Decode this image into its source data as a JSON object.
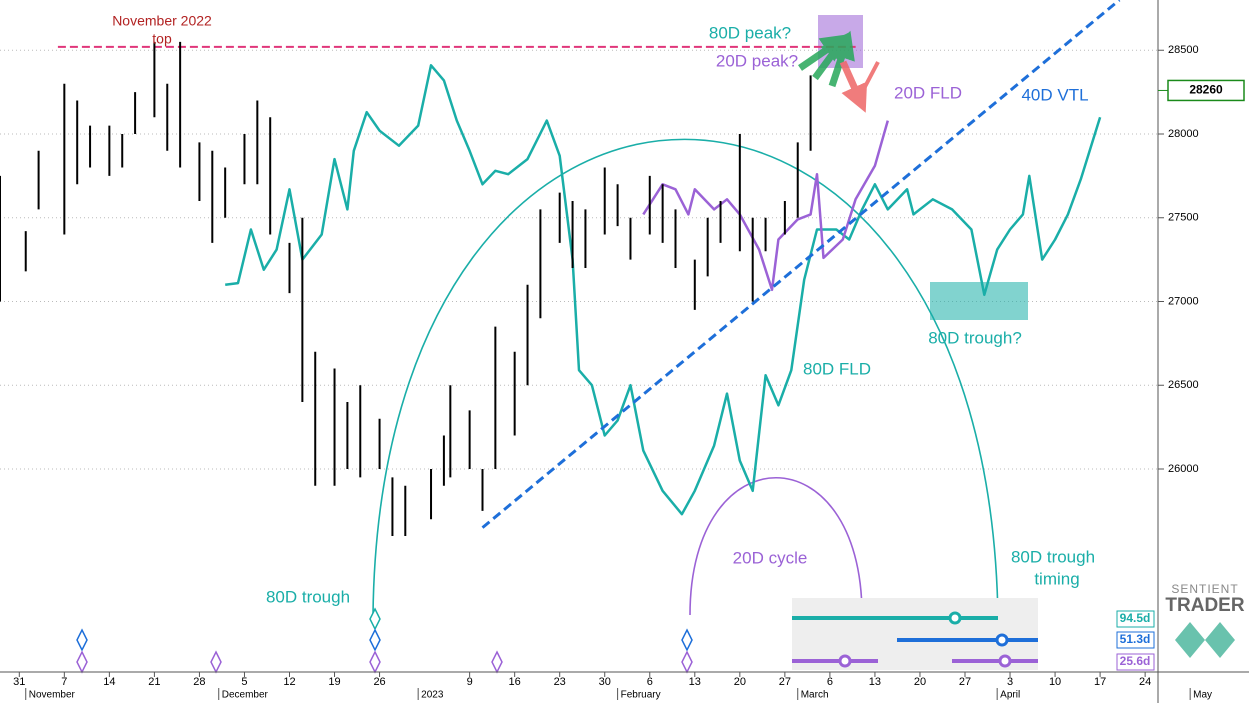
{
  "chart_data": {
    "type": "ohlc",
    "bars": {
      "x": [
        "2022-10-28",
        "2022-11-01",
        "2022-11-03",
        "2022-11-07",
        "2022-11-09",
        "2022-11-11",
        "2022-11-14",
        "2022-11-16",
        "2022-11-18",
        "2022-11-21",
        "2022-11-23",
        "2022-11-25",
        "2022-11-28",
        "2022-11-30",
        "2022-12-02",
        "2022-12-05",
        "2022-12-07",
        "2022-12-09",
        "2022-12-12",
        "2022-12-14",
        "2022-12-16",
        "2022-12-19",
        "2022-12-21",
        "2022-12-23",
        "2022-12-26",
        "2022-12-28",
        "2022-12-30",
        "2023-01-03",
        "2023-01-05",
        "2023-01-06",
        "2023-01-09",
        "2023-01-11",
        "2023-01-13",
        "2023-01-16",
        "2023-01-18",
        "2023-01-20",
        "2023-01-23",
        "2023-01-25",
        "2023-01-27",
        "2023-01-30",
        "2023-02-01",
        "2023-02-03",
        "2023-02-06",
        "2023-02-08",
        "2023-02-10",
        "2023-02-13",
        "2023-02-15",
        "2023-02-17",
        "2023-02-20",
        "2023-02-22",
        "2023-02-24",
        "2023-02-27",
        "2023-03-01",
        "2023-03-03"
      ],
      "high": [
        27750,
        27420,
        27900,
        28300,
        28200,
        28050,
        28050,
        28000,
        28250,
        28550,
        28300,
        28550,
        27950,
        27900,
        27800,
        28000,
        28200,
        28100,
        27350,
        27500,
        26700,
        26600,
        26400,
        26500,
        26300,
        25950,
        25900,
        26000,
        26200,
        26500,
        26350,
        26000,
        26850,
        26700,
        27100,
        27550,
        27650,
        27600,
        27550,
        27800,
        27700,
        27500,
        27750,
        27700,
        27550,
        27250,
        27500,
        27600,
        28000,
        27500,
        27500,
        27600,
        27950,
        28350
      ],
      "low": [
        27000,
        27180,
        27550,
        27400,
        27700,
        27800,
        27750,
        27800,
        28000,
        28100,
        27900,
        27800,
        27600,
        27350,
        27500,
        27700,
        27700,
        27400,
        27050,
        26400,
        25900,
        25900,
        26000,
        25950,
        26000,
        25600,
        25600,
        25700,
        25900,
        25950,
        26000,
        25750,
        26000,
        26200,
        26500,
        26900,
        27350,
        27200,
        27200,
        27400,
        27450,
        27250,
        27400,
        27350,
        27200,
        26950,
        27150,
        27350,
        27300,
        27000,
        27300,
        27400,
        27500,
        27900
      ],
      "color": "#000000"
    },
    "series": [
      {
        "name": "80D FLD",
        "color": "#1aaea8",
        "x": [
          "2022-12-02",
          "2022-12-04",
          "2022-12-06",
          "2022-12-08",
          "2022-12-10",
          "2022-12-12",
          "2022-12-14",
          "2022-12-17",
          "2022-12-19",
          "2022-12-21",
          "2022-12-22",
          "2022-12-24",
          "2022-12-26",
          "2022-12-29",
          "2023-01-01",
          "2023-01-03",
          "2023-01-05",
          "2023-01-07",
          "2023-01-09",
          "2023-01-11",
          "2023-01-13",
          "2023-01-15",
          "2023-01-18",
          "2023-01-21",
          "2023-01-23",
          "2023-01-25",
          "2023-01-26",
          "2023-01-28",
          "2023-01-30",
          "2023-02-01",
          "2023-02-03",
          "2023-02-05",
          "2023-02-08",
          "2023-02-11",
          "2023-02-13",
          "2023-02-16",
          "2023-02-18",
          "2023-02-20",
          "2023-02-22",
          "2023-02-24",
          "2023-02-26",
          "2023-02-28",
          "2023-03-02",
          "2023-03-04",
          "2023-03-07",
          "2023-03-09",
          "2023-03-11",
          "2023-03-13",
          "2023-03-15",
          "2023-03-18",
          "2023-03-19",
          "2023-03-22",
          "2023-03-25",
          "2023-03-28",
          "2023-03-30",
          "2023-04-01",
          "2023-04-03",
          "2023-04-05",
          "2023-04-06",
          "2023-04-08",
          "2023-04-10",
          "2023-04-12",
          "2023-04-14",
          "2023-04-17"
        ],
        "values": [
          27100,
          27110,
          27430,
          27190,
          27310,
          27670,
          27250,
          27400,
          27850,
          27550,
          27900,
          28130,
          28020,
          27930,
          28050,
          28410,
          28320,
          28080,
          27900,
          27700,
          27780,
          27760,
          27850,
          28080,
          27870,
          27250,
          26590,
          26500,
          26200,
          26290,
          26500,
          26110,
          25870,
          25730,
          25870,
          26140,
          26450,
          26050,
          25870,
          26560,
          26380,
          26590,
          27130,
          27430,
          27430,
          27370,
          27550,
          27700,
          27550,
          27670,
          27520,
          27610,
          27550,
          27430,
          27040,
          27310,
          27430,
          27520,
          27750,
          27250,
          27370,
          27520,
          27730,
          28100
        ]
      },
      {
        "name": "20D FLD",
        "color": "#9b62d6",
        "x": [
          "2023-02-05",
          "2023-02-08",
          "2023-02-10",
          "2023-02-12",
          "2023-02-13",
          "2023-02-16",
          "2023-02-18",
          "2023-02-20",
          "2023-02-23",
          "2023-02-25",
          "2023-02-26",
          "2023-03-01",
          "2023-03-03",
          "2023-03-04",
          "2023-03-05",
          "2023-03-08",
          "2023-03-10",
          "2023-03-13",
          "2023-03-15"
        ],
        "values": [
          27520,
          27700,
          27670,
          27520,
          27670,
          27550,
          27610,
          27520,
          27310,
          27070,
          27370,
          27490,
          27520,
          27760,
          27260,
          27370,
          27610,
          27810,
          28080
        ]
      },
      {
        "name": "40D VTL",
        "color": "#1e6fd9",
        "dashed": true,
        "x": [
          "2023-01-11",
          "2023-04-20"
        ],
        "values": [
          25650,
          28800
        ]
      }
    ],
    "reference_line": {
      "label": [
        "November 2022",
        "top"
      ],
      "color": "#e0367a",
      "x": [
        "2022-11-06",
        "2023-03-10"
      ],
      "value": 28520
    },
    "last_price": 28260,
    "annotations": {
      "peak80": "80D peak?",
      "peak20": "20D peak?",
      "trough80q": "80D trough?",
      "cycle20": "20D cycle",
      "trough80": "80D trough",
      "timing80": [
        "80D trough",
        "timing"
      ]
    },
    "cycle_lengths": [
      "94.5d",
      "51.3d",
      "25.6d"
    ],
    "logo": [
      "SENTIENT",
      "TRADER"
    ],
    "xlim": [
      "2022-10-28",
      "2023-04-26"
    ],
    "xticks": [
      {
        "value": "2022-10-31",
        "label": "31"
      },
      {
        "value": "2022-11-07",
        "label": "7"
      },
      {
        "value": "2022-11-14",
        "label": "14"
      },
      {
        "value": "2022-11-21",
        "label": "21"
      },
      {
        "value": "2022-11-28",
        "label": "28"
      },
      {
        "value": "2022-12-05",
        "label": "5"
      },
      {
        "value": "2022-12-12",
        "label": "12"
      },
      {
        "value": "2022-12-19",
        "label": "19"
      },
      {
        "value": "2022-12-26",
        "label": "26"
      },
      {
        "value": "2023-01-09",
        "label": "9"
      },
      {
        "value": "2023-01-16",
        "label": "16"
      },
      {
        "value": "2023-01-23",
        "label": "23"
      },
      {
        "value": "2023-01-30",
        "label": "30"
      },
      {
        "value": "2023-02-06",
        "label": "6"
      },
      {
        "value": "2023-02-13",
        "label": "13"
      },
      {
        "value": "2023-02-20",
        "label": "20"
      },
      {
        "value": "2023-02-27",
        "label": "27"
      },
      {
        "value": "2023-03-06",
        "label": "6"
      },
      {
        "value": "2023-03-13",
        "label": "13"
      },
      {
        "value": "2023-03-20",
        "label": "20"
      },
      {
        "value": "2023-03-27",
        "label": "27"
      },
      {
        "value": "2023-04-03",
        "label": "3"
      },
      {
        "value": "2023-04-10",
        "label": "10"
      },
      {
        "value": "2023-04-17",
        "label": "17"
      },
      {
        "value": "2023-04-24",
        "label": "24"
      }
    ],
    "month_labels": [
      {
        "value": "2022-11-01",
        "label": "November"
      },
      {
        "value": "2022-12-01",
        "label": "December"
      },
      {
        "value": "2023-01-01",
        "label": "2023"
      },
      {
        "value": "2023-02-01",
        "label": "February"
      },
      {
        "value": "2023-03-01",
        "label": "March"
      },
      {
        "value": "2023-04-01",
        "label": "April"
      },
      {
        "value": "2023-05-01",
        "label": "May"
      }
    ],
    "ylim": [
      24800,
      28800
    ],
    "yticks": [
      26000,
      26500,
      27000,
      27500,
      28000,
      28500
    ],
    "grid": true
  }
}
